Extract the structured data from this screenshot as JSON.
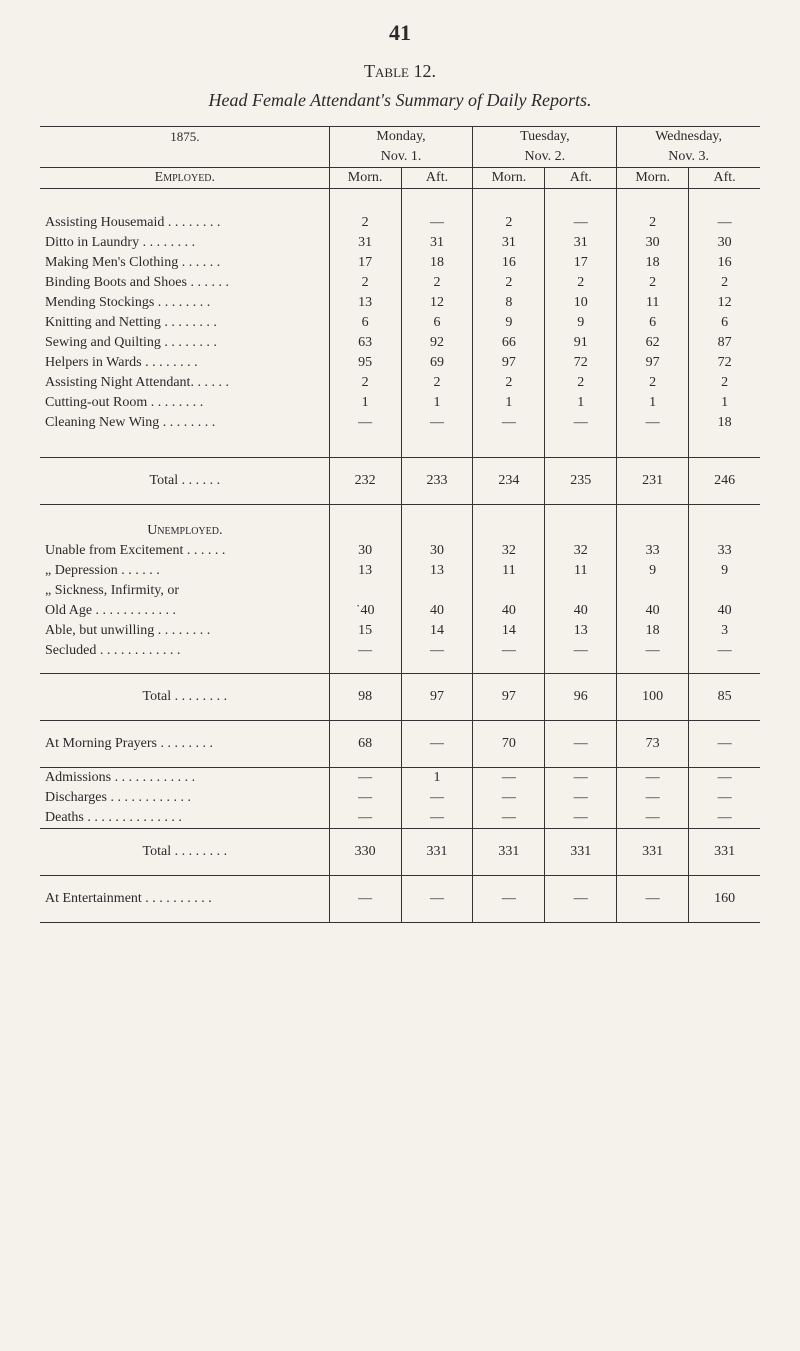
{
  "page_number": "41",
  "table_label": "Table 12.",
  "title_italic_prefix": "Head Female Attendant's Summary of Daily ",
  "title_italic_suffix": "Reports.",
  "year": "1875.",
  "employed_heading": "Employed.",
  "unemployed_heading": "Unemployed.",
  "days": {
    "mon": {
      "name": "Monday,",
      "date": "Nov. 1."
    },
    "tue": {
      "name": "Tuesday,",
      "date": "Nov. 2."
    },
    "wed": {
      "name": "Wednesday,",
      "date": "Nov. 3."
    }
  },
  "subcols": {
    "morn": "Morn.",
    "aft": "Aft."
  },
  "employed_rows": [
    {
      "label": "Assisting Housemaid . .  . .  . .  . .",
      "v": [
        "2",
        "—",
        "2",
        "—",
        "2",
        "—"
      ]
    },
    {
      "label": "Ditto   in Laundry . .  . .  . .  . .",
      "v": [
        "31",
        "31",
        "31",
        "31",
        "30",
        "30"
      ]
    },
    {
      "label": "Making Men's Clothing   . .  . .  . .",
      "v": [
        "17",
        "18",
        "16",
        "17",
        "18",
        "16"
      ]
    },
    {
      "label": "Binding Boots and Shoes  . .  . .  . .",
      "v": [
        "2",
        "2",
        "2",
        "2",
        "2",
        "2"
      ]
    },
    {
      "label": "Mending Stockings   . .  . .  . .  . .",
      "v": [
        "13",
        "12",
        "8",
        "10",
        "11",
        "12"
      ]
    },
    {
      "label": "Knitting and Netting . .  . .  . .  . .",
      "v": [
        "6",
        "6",
        "9",
        "9",
        "6",
        "6"
      ]
    },
    {
      "label": "Sewing and Quilting . .  . .  . .  . .",
      "v": [
        "63",
        "92",
        "66",
        "91",
        "62",
        "87"
      ]
    },
    {
      "label": "Helpers in Wards    . .  . .  . .  . .",
      "v": [
        "95",
        "69",
        "97",
        "72",
        "97",
        "72"
      ]
    },
    {
      "label": "Assisting Night Attendant. .  . .  . .",
      "v": [
        "2",
        "2",
        "2",
        "2",
        "2",
        "2"
      ]
    },
    {
      "label": "Cutting-out Room    . .  . .  . .  . .",
      "v": [
        "1",
        "1",
        "1",
        "1",
        "1",
        "1"
      ]
    },
    {
      "label": "Cleaning New Wing . .  . .  . .  . .",
      "v": [
        "—",
        "—",
        "—",
        "—",
        "—",
        "18"
      ]
    }
  ],
  "employed_total": {
    "label": "Total     . .  . .  . .",
    "v": [
      "232",
      "233",
      "234",
      "235",
      "231",
      "246"
    ]
  },
  "unemployed_rows": [
    {
      "label": "Unable from Excitement  . .  . .  . .",
      "v": [
        "30",
        "30",
        "32",
        "32",
        "33",
        "33"
      ]
    },
    {
      "label": "     „        Depression    . .  . .  . .",
      "v": [
        "13",
        "13",
        "11",
        "11",
        "9",
        "9"
      ]
    },
    {
      "label": "     „        Sickness,  Infirmity,  or",
      "v": [
        "",
        "",
        "",
        "",
        "",
        ""
      ]
    },
    {
      "label": "  Old Age  . .  . .  . .  . .  . .  . .",
      "v": [
        "˙40",
        "40",
        "40",
        "40",
        "40",
        "40"
      ]
    },
    {
      "label": "Able, but unwilling   . .  . .  . .  . .",
      "v": [
        "15",
        "14",
        "14",
        "13",
        "18",
        "3"
      ]
    },
    {
      "label": "Secluded    . .  . .  . .  . .  . .  . .",
      "v": [
        "—",
        "—",
        "—",
        "—",
        "—",
        "—"
      ]
    }
  ],
  "unemployed_total": {
    "label": "Total . .  . .  . .  . .",
    "v": [
      "98",
      "97",
      "97",
      "96",
      "100",
      "85"
    ]
  },
  "prayers": {
    "label": "At Morning Prayers   . .  . .  . .  . .",
    "v": [
      "68",
      "—",
      "70",
      "—",
      "73",
      "—"
    ]
  },
  "admissions": {
    "label": "Admissions    . .  . .  . .  . .  . .  . .",
    "v": [
      "—",
      "1",
      "—",
      "—",
      "—",
      "—"
    ]
  },
  "discharges": {
    "label": "Discharges    . .  . .  . .  . .  . .  . .",
    "v": [
      "—",
      "—",
      "—",
      "—",
      "—",
      "—"
    ]
  },
  "deaths": {
    "label": "Deaths    . .  . .  . .  . .  . .  . .  . .",
    "v": [
      "—",
      "—",
      "—",
      "—",
      "—",
      "—"
    ]
  },
  "grand_total": {
    "label": "Total . .  . .  . .  . .",
    "v": [
      "330",
      "331",
      "331",
      "331",
      "331",
      "331"
    ]
  },
  "entertainment": {
    "label": "At Entertainment  . .  . .  . .  . .  . .",
    "v": [
      "—",
      "—",
      "—",
      "—",
      "—",
      "160"
    ]
  }
}
